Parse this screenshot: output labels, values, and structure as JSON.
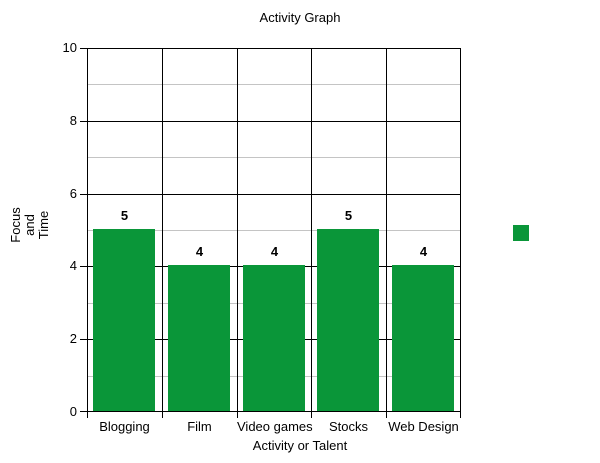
{
  "chart_data": {
    "type": "bar",
    "title": "Activity Graph",
    "xlabel": "Activity or Talent",
    "ylabel": "Focus and Time",
    "ylabel_lines": [
      "Focus",
      "and",
      "Time"
    ],
    "categories": [
      "Blogging",
      "Film",
      "Video games",
      "Stocks",
      "Web Design"
    ],
    "values": [
      5,
      4,
      4,
      5,
      4
    ],
    "bar_labels": [
      "5",
      "4",
      "4",
      "5",
      "4"
    ],
    "ylim": [
      0,
      10
    ],
    "yticks": [
      0,
      2,
      4,
      6,
      8,
      10
    ],
    "ytick_labels": [
      "0",
      "2",
      "4",
      "6",
      "8",
      "10"
    ],
    "minor_gridlines": [
      1,
      3,
      5,
      7,
      9
    ],
    "grid": "on",
    "legend_position": "right",
    "legend": [
      {
        "label": "",
        "color": "#0a9639"
      }
    ],
    "colors": {
      "bar": "#0a9639",
      "major_gridline": "#000000",
      "minor_gridline": "#c4c4c4",
      "text": "#000000",
      "background": "#ffffff"
    }
  }
}
